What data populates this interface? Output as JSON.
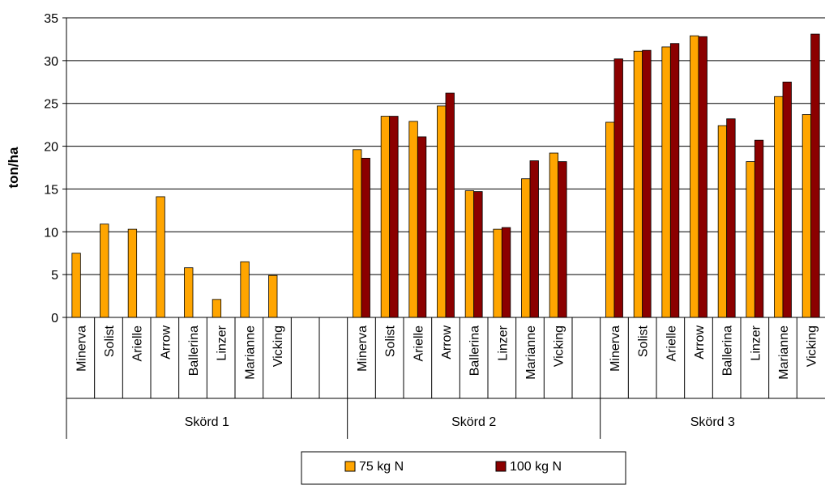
{
  "chart_data": {
    "type": "bar",
    "title": "",
    "xlabel": "",
    "ylabel": "ton/ha",
    "ylim": [
      0,
      35
    ],
    "yticks": [
      0,
      5,
      10,
      15,
      20,
      25,
      30,
      35
    ],
    "grid": "horizontal",
    "legend_position": "bottom-center",
    "groups": [
      {
        "label": "Skörd 1",
        "categories": [
          "Minerva",
          "Solist",
          "Arielle",
          "Arrow",
          "Ballerina",
          "Linzer",
          "Marianne",
          "Vicking",
          "",
          ""
        ]
      },
      {
        "label": "Skörd 2",
        "categories": [
          "Minerva",
          "Solist",
          "Arielle",
          "Arrow",
          "Ballerina",
          "Linzer",
          "Marianne",
          "Vicking",
          ""
        ]
      },
      {
        "label": "Skörd 3",
        "categories": [
          "Minerva",
          "Solist",
          "Arielle",
          "Arrow",
          "Ballerina",
          "Linzer",
          "Marianne",
          "Vicking"
        ]
      }
    ],
    "series": [
      {
        "name": "75 kg N",
        "color": "#FFA500",
        "values": [
          7.5,
          10.9,
          10.3,
          14.1,
          5.8,
          2.1,
          6.5,
          4.9,
          null,
          null,
          19.6,
          23.5,
          22.9,
          24.7,
          14.8,
          10.3,
          16.2,
          19.2,
          null,
          22.8,
          31.1,
          31.6,
          32.9,
          22.4,
          18.2,
          25.8,
          23.7
        ]
      },
      {
        "name": "100 kg N",
        "color": "#8B0000",
        "values": [
          null,
          null,
          null,
          null,
          null,
          null,
          null,
          null,
          null,
          null,
          18.6,
          23.5,
          21.1,
          26.2,
          14.7,
          10.5,
          18.3,
          18.2,
          null,
          30.2,
          31.2,
          32.0,
          32.8,
          23.2,
          20.7,
          27.5,
          33.1
        ]
      }
    ]
  }
}
